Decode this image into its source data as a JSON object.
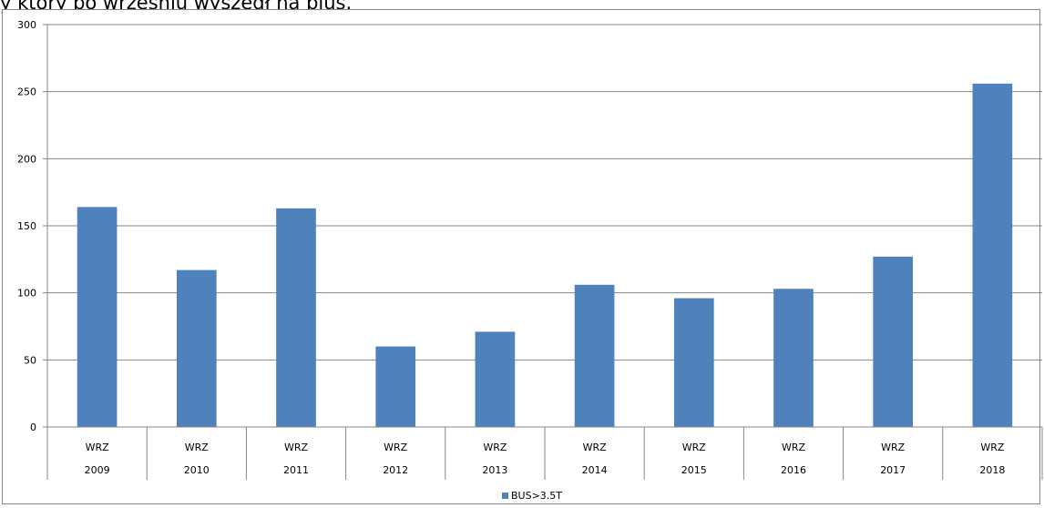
{
  "caption": "y który po wrześniu wyszedł na plus.",
  "chart_data": {
    "type": "bar",
    "categories": [
      [
        "WRZ",
        "2009"
      ],
      [
        "WRZ",
        "2010"
      ],
      [
        "WRZ",
        "2011"
      ],
      [
        "WRZ",
        "2012"
      ],
      [
        "WRZ",
        "2013"
      ],
      [
        "WRZ",
        "2014"
      ],
      [
        "WRZ",
        "2015"
      ],
      [
        "WRZ",
        "2016"
      ],
      [
        "WRZ",
        "2017"
      ],
      [
        "WRZ",
        "2018"
      ]
    ],
    "series": [
      {
        "name": "BUS>3.5T",
        "values": [
          164,
          117,
          163,
          60,
          71,
          106,
          96,
          103,
          127,
          256
        ],
        "color": "#4F81BD"
      }
    ],
    "ylim": [
      0,
      300
    ],
    "yticks": [
      0,
      50,
      100,
      150,
      200,
      250,
      300
    ],
    "grid": true,
    "legend_position": "bottom"
  }
}
